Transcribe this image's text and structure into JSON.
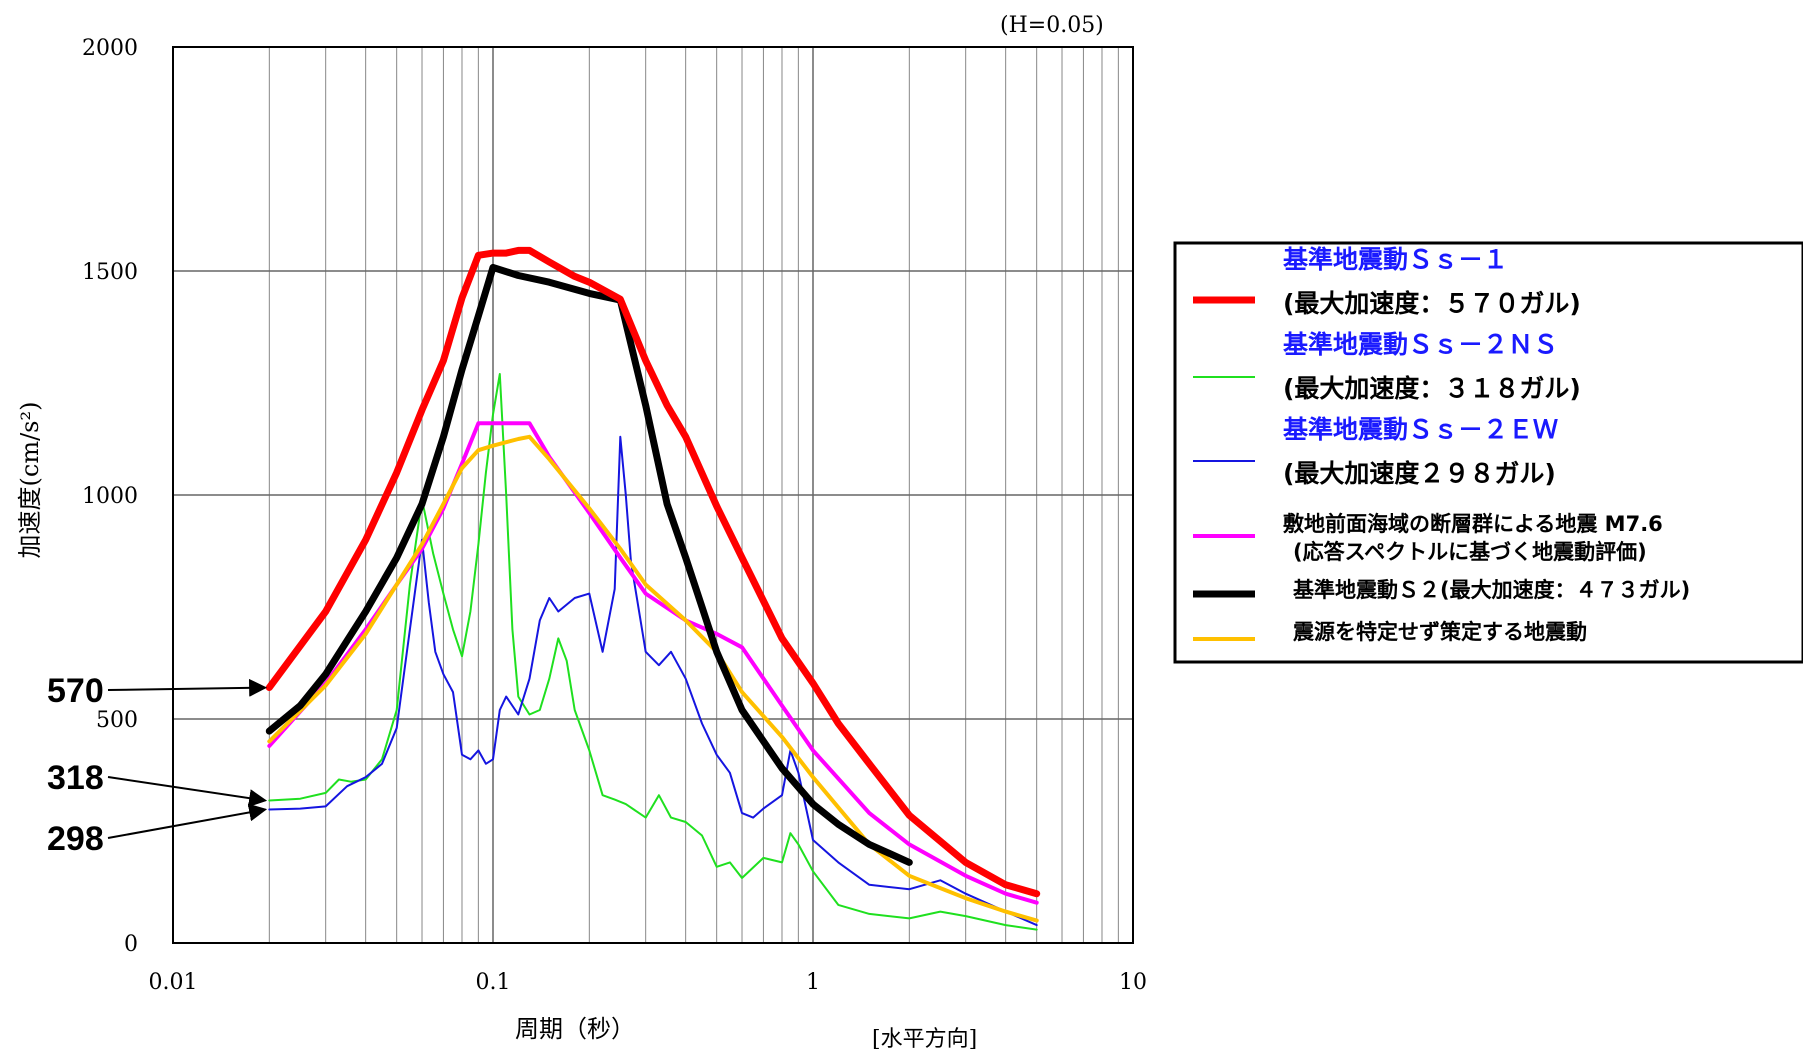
{
  "chart_data": {
    "type": "line",
    "annotation": "(H=0.05)",
    "xlabel": "周期（秒）",
    "ylabel": "加速度(cm/s²)",
    "direction_note": "[水平方向]",
    "x_scale": "log",
    "xlim": [
      0.01,
      10
    ],
    "ylim": [
      0,
      2000
    ],
    "x_ticks": [
      {
        "value": 0.01,
        "label": "0.01"
      },
      {
        "value": 0.1,
        "label": "0.1"
      },
      {
        "value": 1,
        "label": "1"
      },
      {
        "value": 10,
        "label": "10"
      }
    ],
    "y_ticks": [
      {
        "value": 0,
        "label": "0"
      },
      {
        "value": 500,
        "label": "500"
      },
      {
        "value": 1000,
        "label": "1000"
      },
      {
        "value": 1500,
        "label": "1500"
      },
      {
        "value": 2000,
        "label": "2000"
      }
    ],
    "grid": true,
    "markers": [
      {
        "label": "570",
        "x": 0.02,
        "y": 570
      },
      {
        "label": "318",
        "x": 0.02,
        "y": 318
      },
      {
        "label": "298",
        "x": 0.02,
        "y": 298
      }
    ],
    "legend_position": "right",
    "series": [
      {
        "name": "基準地震動Ｓｓ－１",
        "sub": "(最大加速度：５７０ガル)",
        "color": "#ff0000",
        "width": 7,
        "name_color": "#1a1aff",
        "points": [
          [
            0.02,
            570
          ],
          [
            0.03,
            740
          ],
          [
            0.04,
            900
          ],
          [
            0.05,
            1050
          ],
          [
            0.06,
            1190
          ],
          [
            0.07,
            1300
          ],
          [
            0.08,
            1440
          ],
          [
            0.09,
            1535
          ],
          [
            0.1,
            1540
          ],
          [
            0.11,
            1540
          ],
          [
            0.12,
            1546
          ],
          [
            0.13,
            1546
          ],
          [
            0.15,
            1520
          ],
          [
            0.18,
            1488
          ],
          [
            0.2,
            1475
          ],
          [
            0.25,
            1437
          ],
          [
            0.3,
            1300
          ],
          [
            0.35,
            1200
          ],
          [
            0.4,
            1130
          ],
          [
            0.5,
            975
          ],
          [
            0.6,
            860
          ],
          [
            0.8,
            680
          ],
          [
            1.0,
            580
          ],
          [
            1.2,
            490
          ],
          [
            1.5,
            400
          ],
          [
            2.0,
            285
          ],
          [
            3.0,
            180
          ],
          [
            4.0,
            130
          ],
          [
            5.0,
            110
          ]
        ]
      },
      {
        "name": "基準地震動Ｓｓ－２ＮＳ",
        "sub": "(最大加速度：３１８ガル)",
        "color": "#1fe01f",
        "width": 2,
        "name_color": "#1a1aff",
        "points": [
          [
            0.02,
            318
          ],
          [
            0.025,
            322
          ],
          [
            0.03,
            335
          ],
          [
            0.033,
            365
          ],
          [
            0.036,
            360
          ],
          [
            0.04,
            365
          ],
          [
            0.045,
            410
          ],
          [
            0.05,
            520
          ],
          [
            0.055,
            800
          ],
          [
            0.06,
            990
          ],
          [
            0.065,
            870
          ],
          [
            0.07,
            780
          ],
          [
            0.075,
            700
          ],
          [
            0.08,
            640
          ],
          [
            0.085,
            740
          ],
          [
            0.09,
            890
          ],
          [
            0.095,
            1050
          ],
          [
            0.1,
            1180
          ],
          [
            0.105,
            1270
          ],
          [
            0.11,
            1000
          ],
          [
            0.115,
            700
          ],
          [
            0.12,
            550
          ],
          [
            0.13,
            510
          ],
          [
            0.14,
            520
          ],
          [
            0.15,
            590
          ],
          [
            0.16,
            680
          ],
          [
            0.17,
            630
          ],
          [
            0.18,
            520
          ],
          [
            0.2,
            430
          ],
          [
            0.22,
            330
          ],
          [
            0.24,
            320
          ],
          [
            0.26,
            310
          ],
          [
            0.3,
            280
          ],
          [
            0.33,
            330
          ],
          [
            0.36,
            280
          ],
          [
            0.4,
            270
          ],
          [
            0.45,
            240
          ],
          [
            0.5,
            170
          ],
          [
            0.55,
            180
          ],
          [
            0.6,
            145
          ],
          [
            0.7,
            190
          ],
          [
            0.8,
            180
          ],
          [
            0.85,
            245
          ],
          [
            0.9,
            220
          ],
          [
            1.0,
            160
          ],
          [
            1.2,
            85
          ],
          [
            1.5,
            65
          ],
          [
            2.0,
            55
          ],
          [
            2.5,
            70
          ],
          [
            3.0,
            60
          ],
          [
            4.0,
            40
          ],
          [
            5.0,
            30
          ]
        ]
      },
      {
        "name": "基準地震動Ｓｓ－２ＥＷ",
        "sub": "(最大加速度２９８ガル)",
        "color": "#1515e0",
        "width": 2,
        "name_color": "#1a1aff",
        "points": [
          [
            0.02,
            298
          ],
          [
            0.025,
            300
          ],
          [
            0.03,
            305
          ],
          [
            0.035,
            350
          ],
          [
            0.04,
            370
          ],
          [
            0.045,
            400
          ],
          [
            0.05,
            480
          ],
          [
            0.055,
            700
          ],
          [
            0.06,
            900
          ],
          [
            0.063,
            760
          ],
          [
            0.066,
            650
          ],
          [
            0.07,
            600
          ],
          [
            0.075,
            560
          ],
          [
            0.08,
            420
          ],
          [
            0.085,
            410
          ],
          [
            0.09,
            430
          ],
          [
            0.095,
            400
          ],
          [
            0.1,
            410
          ],
          [
            0.105,
            520
          ],
          [
            0.11,
            550
          ],
          [
            0.12,
            510
          ],
          [
            0.13,
            590
          ],
          [
            0.14,
            720
          ],
          [
            0.15,
            770
          ],
          [
            0.16,
            740
          ],
          [
            0.18,
            770
          ],
          [
            0.2,
            780
          ],
          [
            0.22,
            650
          ],
          [
            0.24,
            790
          ],
          [
            0.25,
            1130
          ],
          [
            0.26,
            1000
          ],
          [
            0.27,
            850
          ],
          [
            0.3,
            650
          ],
          [
            0.33,
            620
          ],
          [
            0.36,
            650
          ],
          [
            0.4,
            590
          ],
          [
            0.45,
            490
          ],
          [
            0.5,
            420
          ],
          [
            0.55,
            380
          ],
          [
            0.6,
            290
          ],
          [
            0.65,
            280
          ],
          [
            0.7,
            300
          ],
          [
            0.8,
            330
          ],
          [
            0.85,
            430
          ],
          [
            0.9,
            380
          ],
          [
            1.0,
            230
          ],
          [
            1.2,
            180
          ],
          [
            1.5,
            130
          ],
          [
            2.0,
            120
          ],
          [
            2.5,
            140
          ],
          [
            3.0,
            110
          ],
          [
            4.0,
            70
          ],
          [
            5.0,
            40
          ]
        ]
      },
      {
        "name": "敷地前面海域の断層群による地震 M7.6",
        "sub": "(応答スペクトルに基づく地震動評価)",
        "color": "#ff00ff",
        "width": 4,
        "name_color": "#000000",
        "points": [
          [
            0.02,
            440
          ],
          [
            0.03,
            580
          ],
          [
            0.04,
            700
          ],
          [
            0.05,
            800
          ],
          [
            0.06,
            880
          ],
          [
            0.07,
            970
          ],
          [
            0.08,
            1070
          ],
          [
            0.09,
            1160
          ],
          [
            0.1,
            1160
          ],
          [
            0.11,
            1160
          ],
          [
            0.12,
            1160
          ],
          [
            0.13,
            1160
          ],
          [
            0.15,
            1085
          ],
          [
            0.2,
            960
          ],
          [
            0.25,
            860
          ],
          [
            0.3,
            780
          ],
          [
            0.4,
            720
          ],
          [
            0.5,
            690
          ],
          [
            0.6,
            660
          ],
          [
            0.8,
            530
          ],
          [
            1.0,
            430
          ],
          [
            1.5,
            290
          ],
          [
            2.0,
            220
          ],
          [
            3.0,
            150
          ],
          [
            4.0,
            110
          ],
          [
            5.0,
            90
          ]
        ]
      },
      {
        "name": "基準地震動Ｓ２(最大加速度：４７３ガル)",
        "sub": "",
        "color": "#000000",
        "width": 7,
        "name_color": "#000000",
        "points": [
          [
            0.02,
            473
          ],
          [
            0.025,
            530
          ],
          [
            0.03,
            600
          ],
          [
            0.04,
            740
          ],
          [
            0.05,
            860
          ],
          [
            0.06,
            980
          ],
          [
            0.07,
            1130
          ],
          [
            0.08,
            1280
          ],
          [
            0.09,
            1400
          ],
          [
            0.1,
            1508
          ],
          [
            0.12,
            1490
          ],
          [
            0.15,
            1475
          ],
          [
            0.2,
            1450
          ],
          [
            0.25,
            1435
          ],
          [
            0.3,
            1200
          ],
          [
            0.35,
            980
          ],
          [
            0.4,
            860
          ],
          [
            0.45,
            750
          ],
          [
            0.5,
            650
          ],
          [
            0.6,
            520
          ],
          [
            0.8,
            390
          ],
          [
            1.0,
            310
          ],
          [
            1.2,
            265
          ],
          [
            1.5,
            220
          ],
          [
            2.0,
            180
          ]
        ]
      },
      {
        "name": "震源を特定せず策定する地震動",
        "sub": "",
        "color": "#ffc000",
        "width": 4,
        "name_color": "#000000",
        "points": [
          [
            0.02,
            450
          ],
          [
            0.03,
            575
          ],
          [
            0.04,
            690
          ],
          [
            0.05,
            800
          ],
          [
            0.06,
            890
          ],
          [
            0.07,
            980
          ],
          [
            0.08,
            1060
          ],
          [
            0.09,
            1100
          ],
          [
            0.1,
            1110
          ],
          [
            0.12,
            1125
          ],
          [
            0.13,
            1130
          ],
          [
            0.15,
            1080
          ],
          [
            0.2,
            970
          ],
          [
            0.25,
            880
          ],
          [
            0.3,
            800
          ],
          [
            0.4,
            720
          ],
          [
            0.5,
            650
          ],
          [
            0.6,
            560
          ],
          [
            0.8,
            460
          ],
          [
            1.0,
            370
          ],
          [
            1.5,
            220
          ],
          [
            2.0,
            150
          ],
          [
            3.0,
            100
          ],
          [
            4.0,
            70
          ],
          [
            5.0,
            50
          ]
        ]
      }
    ]
  }
}
